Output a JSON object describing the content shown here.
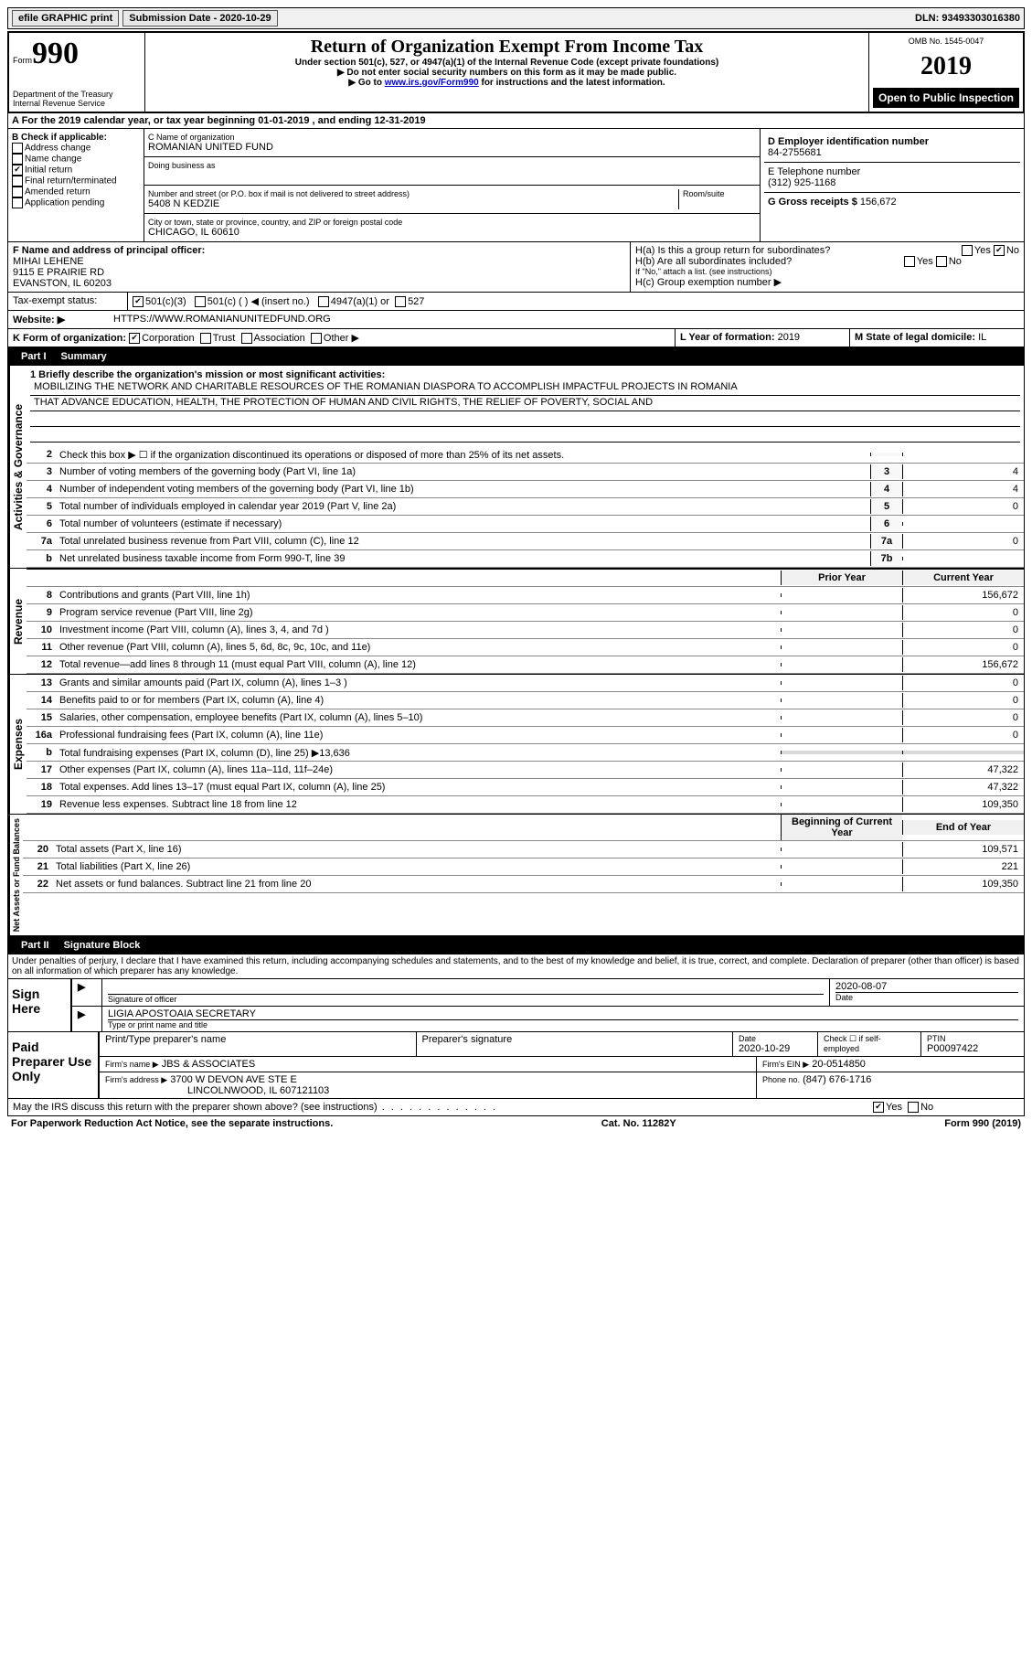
{
  "top": {
    "efile": "efile GRAPHIC print",
    "submission_label": "Submission Date - 2020-10-29",
    "dln": "DLN: 93493303016380"
  },
  "header": {
    "form_prefix": "Form",
    "form_number": "990",
    "dept": "Department of the Treasury",
    "irs": "Internal Revenue Service",
    "title": "Return of Organization Exempt From Income Tax",
    "subtitle": "Under section 501(c), 527, or 4947(a)(1) of the Internal Revenue Code (except private foundations)",
    "note1": "▶ Do not enter social security numbers on this form as it may be made public.",
    "note2_pre": "▶ Go to ",
    "note2_link": "www.irs.gov/Form990",
    "note2_post": " for instructions and the latest information.",
    "omb": "OMB No. 1545-0047",
    "year": "2019",
    "open": "Open to Public Inspection"
  },
  "A": {
    "text": "A For the 2019 calendar year, or tax year beginning 01-01-2019   , and ending 12-31-2019"
  },
  "B": {
    "label": "B Check if applicable:",
    "opts": [
      "Address change",
      "Name change",
      "Initial return",
      "Final return/terminated",
      "Amended return",
      "Application pending"
    ],
    "checked_index": 2
  },
  "C": {
    "name_label": "C Name of organization",
    "name": "ROMANIAN UNITED FUND",
    "dba_label": "Doing business as",
    "addr_label": "Number and street (or P.O. box if mail is not delivered to street address)",
    "room_label": "Room/suite",
    "addr": "5408 N KEDZIE",
    "city_label": "City or town, state or province, country, and ZIP or foreign postal code",
    "city": "CHICAGO, IL  60610"
  },
  "D": {
    "label": "D Employer identification number",
    "ein": "84-2755681"
  },
  "E": {
    "label": "E Telephone number",
    "phone": "(312) 925-1168"
  },
  "G": {
    "label": "G Gross receipts $",
    "val": "156,672"
  },
  "F": {
    "label": "F  Name and address of principal officer:",
    "name": "MIHAI LEHENE",
    "addr1": "9115 E PRAIRIE RD",
    "addr2": "EVANSTON, IL  60203"
  },
  "H": {
    "a": "H(a)  Is this a group return for subordinates?",
    "b": "H(b)  Are all subordinates included?",
    "b_note": "If \"No,\" attach a list. (see instructions)",
    "c": "H(c)  Group exemption number ▶",
    "yes": "Yes",
    "no": "No"
  },
  "I": {
    "label": "Tax-exempt status:",
    "o1": "501(c)(3)",
    "o2": "501(c) (  ) ◀ (insert no.)",
    "o3": "4947(a)(1) or",
    "o4": "527"
  },
  "J": {
    "label": "Website: ▶",
    "url": "HTTPS://WWW.ROMANIANUNITEDFUND.ORG"
  },
  "K": {
    "label": "K Form of organization:",
    "o1": "Corporation",
    "o2": "Trust",
    "o3": "Association",
    "o4": "Other ▶"
  },
  "L": {
    "label": "L Year of formation:",
    "val": "2019"
  },
  "M": {
    "label": "M State of legal domicile:",
    "val": "IL"
  },
  "part1": {
    "label": "Part I",
    "title": "Summary"
  },
  "mission": {
    "q": "1  Briefly describe the organization's mission or most significant activities:",
    "l1": "MOBILIZING THE NETWORK AND CHARITABLE RESOURCES OF THE ROMANIAN DIASPORA TO ACCOMPLISH IMPACTFUL PROJECTS IN ROMANIA",
    "l2": "THAT ADVANCE EDUCATION, HEALTH, THE PROTECTION OF HUMAN AND CIVIL RIGHTS, THE RELIEF OF POVERTY, SOCIAL AND"
  },
  "gov_rows": [
    {
      "n": "2",
      "t": "Check this box ▶ ☐  if the organization discontinued its operations or disposed of more than 25% of its net assets.",
      "box": "",
      "v": ""
    },
    {
      "n": "3",
      "t": "Number of voting members of the governing body (Part VI, line 1a)",
      "box": "3",
      "v": "4"
    },
    {
      "n": "4",
      "t": "Number of independent voting members of the governing body (Part VI, line 1b)",
      "box": "4",
      "v": "4"
    },
    {
      "n": "5",
      "t": "Total number of individuals employed in calendar year 2019 (Part V, line 2a)",
      "box": "5",
      "v": "0"
    },
    {
      "n": "6",
      "t": "Total number of volunteers (estimate if necessary)",
      "box": "6",
      "v": ""
    },
    {
      "n": "7a",
      "t": "Total unrelated business revenue from Part VIII, column (C), line 12",
      "box": "7a",
      "v": "0"
    },
    {
      "n": "b",
      "t": "Net unrelated business taxable income from Form 990-T, line 39",
      "box": "7b",
      "v": ""
    }
  ],
  "col_headers": {
    "prior": "Prior Year",
    "current": "Current Year"
  },
  "rev_rows": [
    {
      "n": "8",
      "t": "Contributions and grants (Part VIII, line 1h)",
      "p": "",
      "c": "156,672"
    },
    {
      "n": "9",
      "t": "Program service revenue (Part VIII, line 2g)",
      "p": "",
      "c": "0"
    },
    {
      "n": "10",
      "t": "Investment income (Part VIII, column (A), lines 3, 4, and 7d )",
      "p": "",
      "c": "0"
    },
    {
      "n": "11",
      "t": "Other revenue (Part VIII, column (A), lines 5, 6d, 8c, 9c, 10c, and 11e)",
      "p": "",
      "c": "0"
    },
    {
      "n": "12",
      "t": "Total revenue—add lines 8 through 11 (must equal Part VIII, column (A), line 12)",
      "p": "",
      "c": "156,672"
    }
  ],
  "exp_rows": [
    {
      "n": "13",
      "t": "Grants and similar amounts paid (Part IX, column (A), lines 1–3 )",
      "p": "",
      "c": "0"
    },
    {
      "n": "14",
      "t": "Benefits paid to or for members (Part IX, column (A), line 4)",
      "p": "",
      "c": "0"
    },
    {
      "n": "15",
      "t": "Salaries, other compensation, employee benefits (Part IX, column (A), lines 5–10)",
      "p": "",
      "c": "0"
    },
    {
      "n": "16a",
      "t": "Professional fundraising fees (Part IX, column (A), line 11e)",
      "p": "",
      "c": "0"
    },
    {
      "n": "b",
      "t": "Total fundraising expenses (Part IX, column (D), line 25) ▶13,636",
      "p": "shade",
      "c": "shade"
    },
    {
      "n": "17",
      "t": "Other expenses (Part IX, column (A), lines 11a–11d, 11f–24e)",
      "p": "",
      "c": "47,322"
    },
    {
      "n": "18",
      "t": "Total expenses. Add lines 13–17 (must equal Part IX, column (A), line 25)",
      "p": "",
      "c": "47,322"
    },
    {
      "n": "19",
      "t": "Revenue less expenses. Subtract line 18 from line 12",
      "p": "",
      "c": "109,350"
    }
  ],
  "net_headers": {
    "begin": "Beginning of Current Year",
    "end": "End of Year"
  },
  "net_rows": [
    {
      "n": "20",
      "t": "Total assets (Part X, line 16)",
      "p": "",
      "c": "109,571"
    },
    {
      "n": "21",
      "t": "Total liabilities (Part X, line 26)",
      "p": "",
      "c": "221"
    },
    {
      "n": "22",
      "t": "Net assets or fund balances. Subtract line 21 from line 20",
      "p": "",
      "c": "109,350"
    }
  ],
  "vlabels": {
    "gov": "Activities & Governance",
    "rev": "Revenue",
    "exp": "Expenses",
    "net": "Net Assets or Fund Balances"
  },
  "part2": {
    "label": "Part II",
    "title": "Signature Block",
    "decl": "Under penalties of perjury, I declare that I have examined this return, including accompanying schedules and statements, and to the best of my knowledge and belief, it is true, correct, and complete. Declaration of preparer (other than officer) is based on all information of which preparer has any knowledge."
  },
  "sign": {
    "here": "Sign Here",
    "sig_label": "Signature of officer",
    "date_label": "Date",
    "date": "2020-08-07",
    "name": "LIGIA APOSTOAIA  SECRETARY",
    "name_label": "Type or print name and title"
  },
  "paid": {
    "title": "Paid Preparer Use Only",
    "h1": "Print/Type preparer's name",
    "h2": "Preparer's signature",
    "h3": "Date",
    "h4": "Check ☐ if self-employed",
    "h5": "PTIN",
    "date": "2020-10-29",
    "ptin": "P00097422",
    "firm_name_label": "Firm's name    ▶",
    "firm_name": "JBS & ASSOCIATES",
    "firm_ein_label": "Firm's EIN ▶",
    "firm_ein": "20-0514850",
    "firm_addr_label": "Firm's address ▶",
    "firm_addr1": "3700 W DEVON AVE STE E",
    "firm_addr2": "LINCOLNWOOD, IL  607121103",
    "phone_label": "Phone no.",
    "phone": "(847) 676-1716"
  },
  "discuss": {
    "q": "May the IRS discuss this return with the preparer shown above? (see instructions)",
    "yes": "Yes",
    "no": "No"
  },
  "footer": {
    "left": "For Paperwork Reduction Act Notice, see the separate instructions.",
    "mid": "Cat. No. 11282Y",
    "right": "Form 990 (2019)"
  }
}
